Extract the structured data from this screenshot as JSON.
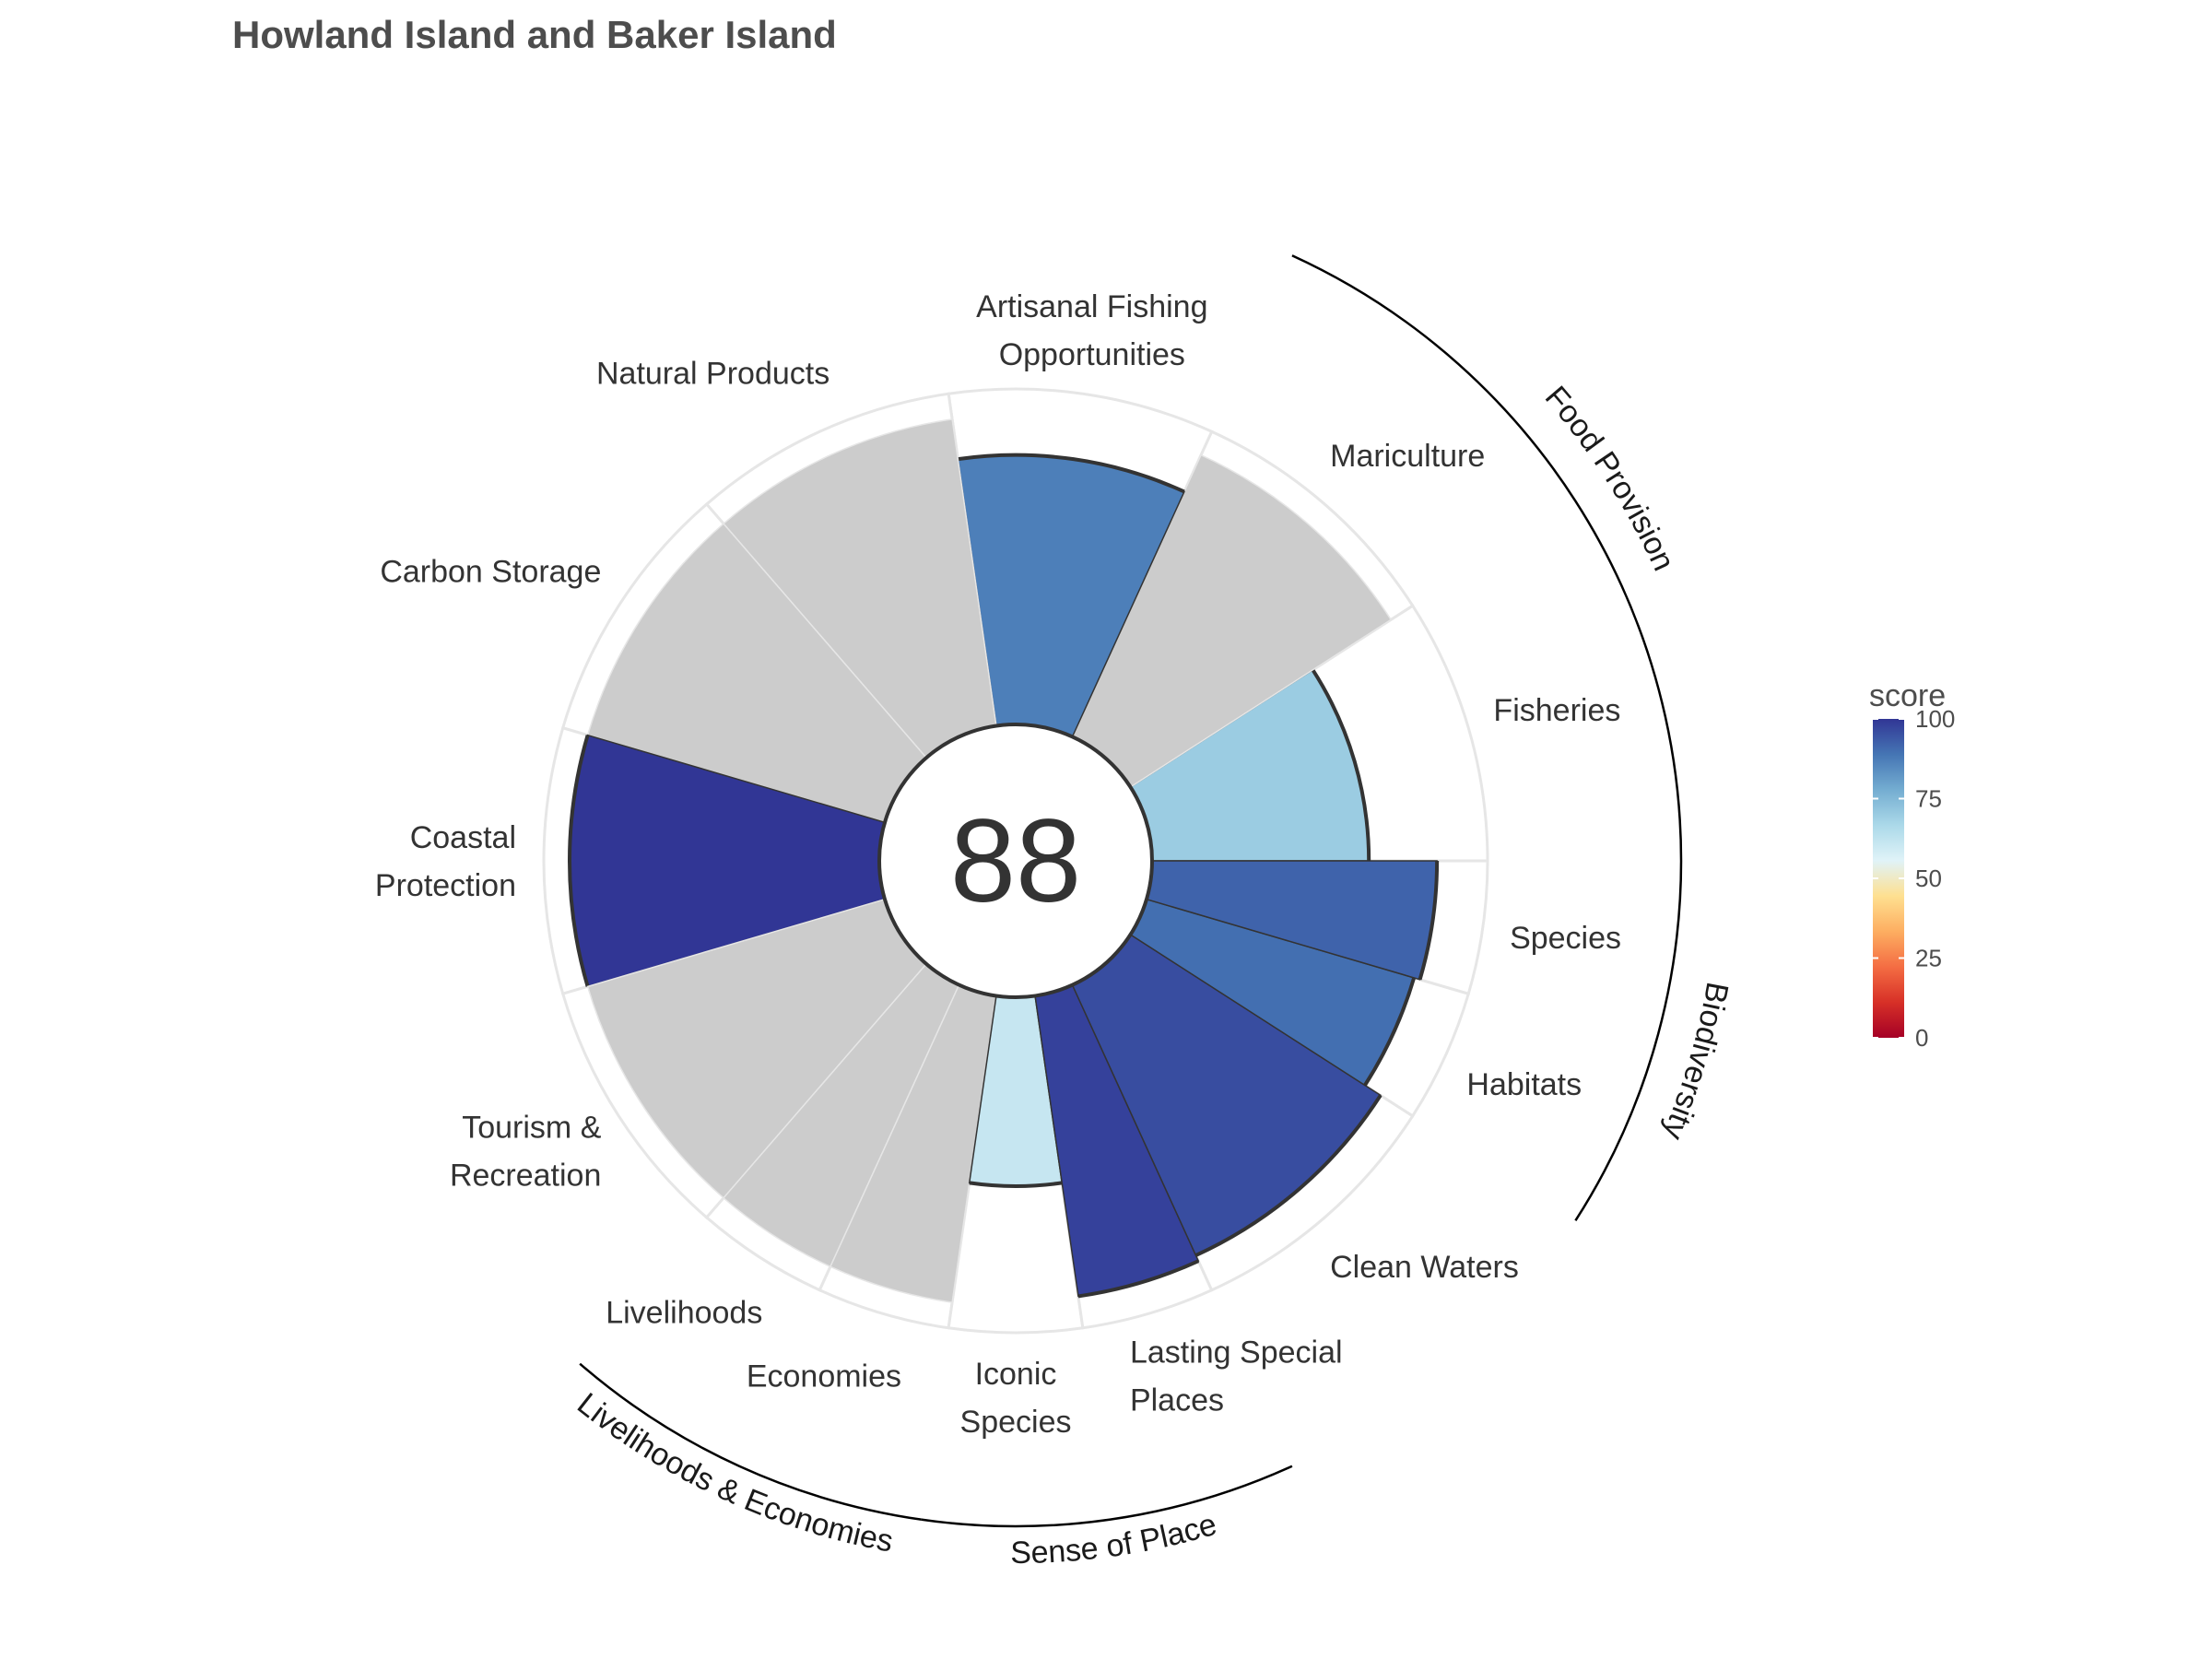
{
  "chart_data": {
    "type": "bar",
    "subtype": "polar-flower",
    "title": "Howland Island and Baker Island",
    "overall_score": "88",
    "rmax": 100,
    "goals": [
      {
        "label": [
          "Fisheries"
        ],
        "score": 70,
        "weight": 1
      },
      {
        "label": [
          "Mariculture"
        ],
        "score": null,
        "weight": 1
      },
      {
        "label": [
          "Artisanal Fishing",
          "Opportunities"
        ],
        "score": 87,
        "weight": 1
      },
      {
        "label": [
          "Natural Products"
        ],
        "score": null,
        "weight": 1
      },
      {
        "label": [
          "Carbon Storage"
        ],
        "score": null,
        "weight": 1
      },
      {
        "label": [
          "Coastal",
          "Protection"
        ],
        "score": 100,
        "weight": 1
      },
      {
        "label": [
          "Tourism &",
          "Recreation"
        ],
        "score": null,
        "weight": 1
      },
      {
        "label": [
          "Livelihoods"
        ],
        "score": null,
        "weight": 0.5
      },
      {
        "label": [
          "Economies"
        ],
        "score": null,
        "weight": 0.5
      },
      {
        "label": [
          "Iconic",
          "Species"
        ],
        "score": 61,
        "weight": 0.5
      },
      {
        "label": [
          "Lasting Special",
          "Places"
        ],
        "score": 98,
        "weight": 0.5
      },
      {
        "label": [
          "Clean Waters"
        ],
        "score": 96,
        "weight": 1
      },
      {
        "label": [
          "Habitats"
        ],
        "score": 90,
        "weight": 0.5
      },
      {
        "label": [
          "Species"
        ],
        "score": 92,
        "weight": 0.5
      }
    ],
    "groups": [
      {
        "name": "Food Provision",
        "goals": [
          0,
          1
        ]
      },
      {
        "name": "Biodiversity",
        "goals": [
          12,
          13
        ]
      },
      {
        "name": "Sense of Place",
        "goals": [
          9,
          10
        ]
      },
      {
        "name": "Livelihoods & Economies",
        "goals": [
          7,
          8
        ]
      }
    ],
    "na_color": "#cccccc",
    "legend": {
      "title": "score",
      "ticks": [
        0,
        25,
        50,
        75,
        100
      ],
      "colors": [
        "#a50026",
        "#d73027",
        "#f46d43",
        "#fdae61",
        "#fee090",
        "#e0f3f8",
        "#abd9e9",
        "#74add1",
        "#4575b4",
        "#313695"
      ]
    }
  }
}
